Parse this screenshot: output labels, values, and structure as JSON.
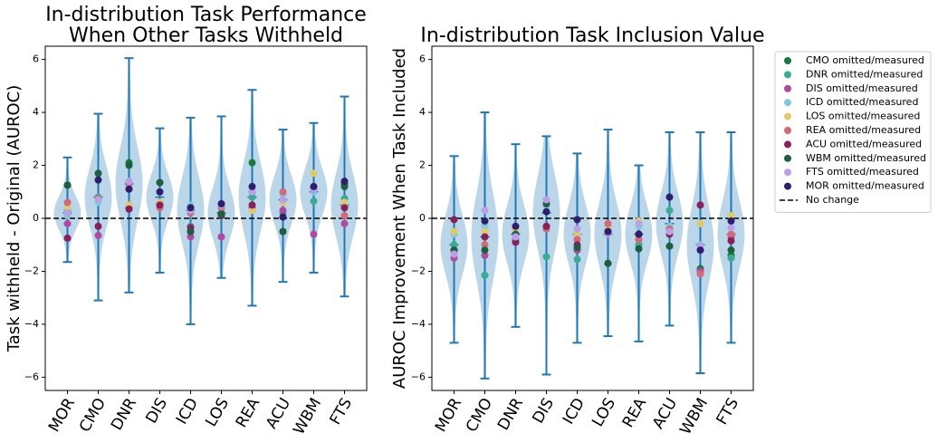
{
  "chart_data": [
    {
      "type": "violin",
      "title": [
        "In-distribution Task Performance",
        "When Other Tasks Withheld"
      ],
      "y_label": "Task withheld - Original (AUROC)",
      "categories": [
        "MOR",
        "CMO",
        "DNR",
        "DIS",
        "ICD",
        "LOS",
        "REA",
        "ACU",
        "WBM",
        "FTS"
      ],
      "mins": [
        -1.65,
        -3.1,
        -2.8,
        -2.05,
        -4.0,
        -2.25,
        -3.3,
        -2.4,
        -2.05,
        -2.95
      ],
      "maxs": [
        2.3,
        3.95,
        6.05,
        3.4,
        3.8,
        3.85,
        4.85,
        3.35,
        3.6,
        4.6
      ],
      "means": [
        0.2,
        0.8,
        1.3,
        0.8,
        0.3,
        0.2,
        0.8,
        0.7,
        1.0,
        0.5
      ],
      "violin_color": "#1f77b4",
      "ylim": [
        -6.5,
        6.5
      ],
      "yticks": [
        {
          "value": -6,
          "label": "−6"
        },
        {
          "value": -4,
          "label": "−4"
        },
        {
          "value": -2,
          "label": "−2"
        },
        0,
        2,
        4,
        6
      ],
      "hline": {
        "value": 0
      },
      "series": [
        {
          "color": "#1a7a3e",
          "values": [
            1.25,
            null,
            2.1,
            1.35,
            -0.5,
            0.2,
            2.1,
            -0.5,
            1.1,
            1.3
          ]
        },
        {
          "color": "#3aab97",
          "values": [
            0.3,
            0.8,
            null,
            0.5,
            -0.3,
            0.4,
            0.8,
            0.2,
            0.65,
            0.75
          ]
        },
        {
          "color": "#b04a9e",
          "values": [
            -0.2,
            -0.65,
            0.4,
            0.5,
            -0.7,
            -0.7,
            0.4,
            0.3,
            -0.6,
            -0.2
          ]
        },
        {
          "color": "#7ecbdc",
          "values": [
            0.1,
            0.6,
            1.2,
            0.6,
            0.5,
            0.5,
            1.0,
            0.9,
            1.0,
            0.5
          ]
        },
        {
          "color": "#e0c96a",
          "values": [
            0.4,
            0.7,
            0.5,
            0.6,
            0.2,
            null,
            0.3,
            0.6,
            1.7,
            0.6
          ]
        },
        {
          "color": "#d4697a",
          "values": [
            0.6,
            0.75,
            1.3,
            0.4,
            0.2,
            0.4,
            null,
            1.0,
            1.1,
            0.1
          ]
        },
        {
          "color": "#8a1f5a",
          "values": [
            -0.75,
            -0.3,
            0.35,
            0.5,
            -0.35,
            0.1,
            0.5,
            null,
            1.1,
            0.4
          ]
        },
        {
          "color": "#1d5e3e",
          "values": [
            1.25,
            1.7,
            2.0,
            1.35,
            -0.5,
            0.15,
            1.0,
            -0.5,
            null,
            1.2
          ]
        },
        {
          "color": "#b8a1e8",
          "values": [
            0.2,
            0.7,
            1.4,
            1.0,
            0.3,
            0.5,
            1.0,
            0.7,
            1.1,
            null
          ]
        },
        {
          "color": "#2d1e6e",
          "values": [
            null,
            1.45,
            1.1,
            1.0,
            0.4,
            0.55,
            1.2,
            0.05,
            1.2,
            1.4
          ]
        }
      ]
    },
    {
      "type": "violin",
      "title": [
        "In-distribution Task Inclusion Value"
      ],
      "y_label": "AUROC Improvement When Task Included",
      "categories": [
        "MOR",
        "CMO",
        "DNR",
        "DIS",
        "ICD",
        "LOS",
        "REA",
        "ACU",
        "WBM",
        "FTS"
      ],
      "mins": [
        -4.7,
        -6.05,
        -4.1,
        -5.9,
        -4.7,
        -4.45,
        -4.65,
        -4.05,
        -5.85,
        -4.7
      ],
      "maxs": [
        2.35,
        4.0,
        2.8,
        3.1,
        2.45,
        3.35,
        2.0,
        3.25,
        3.25,
        3.25
      ],
      "means": [
        -1.0,
        -0.7,
        -0.6,
        0.2,
        -0.6,
        -0.6,
        -0.6,
        -0.2,
        -1.0,
        -0.6
      ],
      "violin_color": "#1f77b4",
      "ylim": [
        -6.5,
        6.5
      ],
      "yticks": [
        {
          "value": -6,
          "label": "−6"
        },
        {
          "value": -4,
          "label": "−4"
        },
        {
          "value": -2,
          "label": "−2"
        },
        0,
        2,
        4,
        6
      ],
      "hline": {
        "value": 0,
        "label": "No change"
      },
      "legend": "outside",
      "series": [
        {
          "name": "CMO omitted/measured",
          "color": "#1a7a3e",
          "values": [
            -1.2,
            null,
            -0.6,
            0.5,
            -1.2,
            -1.7,
            -1.0,
            -1.05,
            -1.9,
            -1.4
          ]
        },
        {
          "name": "DNR omitted/measured",
          "color": "#3aab97",
          "values": [
            -1.0,
            -2.15,
            -0.8,
            -1.45,
            -1.55,
            -0.5,
            -1.0,
            0.3,
            -1.2,
            -1.5
          ]
        },
        {
          "name": "DIS omitted/measured",
          "color": "#b04a9e",
          "values": [
            -1.5,
            -1.4,
            -0.9,
            -0.3,
            -1.2,
            -0.5,
            -0.6,
            -0.4,
            -2.0,
            -0.7
          ]
        },
        {
          "name": "ICD omitted/measured",
          "color": "#7ecbdc",
          "values": [
            -0.6,
            -0.3,
            -0.6,
            0.5,
            null,
            -0.3,
            -0.3,
            -0.3,
            -1.0,
            -0.6
          ]
        },
        {
          "name": "LOS omitted/measured",
          "color": "#e0c96a",
          "values": [
            -0.5,
            -0.5,
            -0.4,
            0.7,
            -0.6,
            -0.4,
            -0.1,
            -0.6,
            -0.2,
            0.1
          ]
        },
        {
          "name": "REA omitted/measured",
          "color": "#d4697a",
          "values": [
            -1.3,
            -1.0,
            -0.7,
            -0.4,
            -0.8,
            -0.2,
            -0.8,
            -0.4,
            -2.1,
            -0.6
          ]
        },
        {
          "name": "ACU omitted/measured",
          "color": "#8a1f5a",
          "values": [
            -0.05,
            -0.7,
            -0.9,
            -0.3,
            -1.0,
            -0.5,
            -0.6,
            -0.6,
            0.5,
            -0.85
          ]
        },
        {
          "name": "WBM omitted/measured",
          "color": "#1d5e3e",
          "values": [
            -1.2,
            -1.2,
            -0.6,
            0.55,
            -1.1,
            -1.7,
            -1.15,
            -1.05,
            null,
            -1.2
          ]
        },
        {
          "name": "FTS omitted/measured",
          "color": "#b8a1e8",
          "values": [
            -1.35,
            0.3,
            -0.7,
            0.7,
            -0.4,
            -0.6,
            -0.2,
            -0.5,
            -1.05,
            -0.35
          ]
        },
        {
          "name": "MOR omitted/measured",
          "color": "#2d1e6e",
          "values": [
            null,
            -0.1,
            -0.3,
            0.25,
            -0.05,
            -0.5,
            -0.6,
            0.8,
            -1.2,
            -0.1
          ]
        }
      ]
    }
  ]
}
